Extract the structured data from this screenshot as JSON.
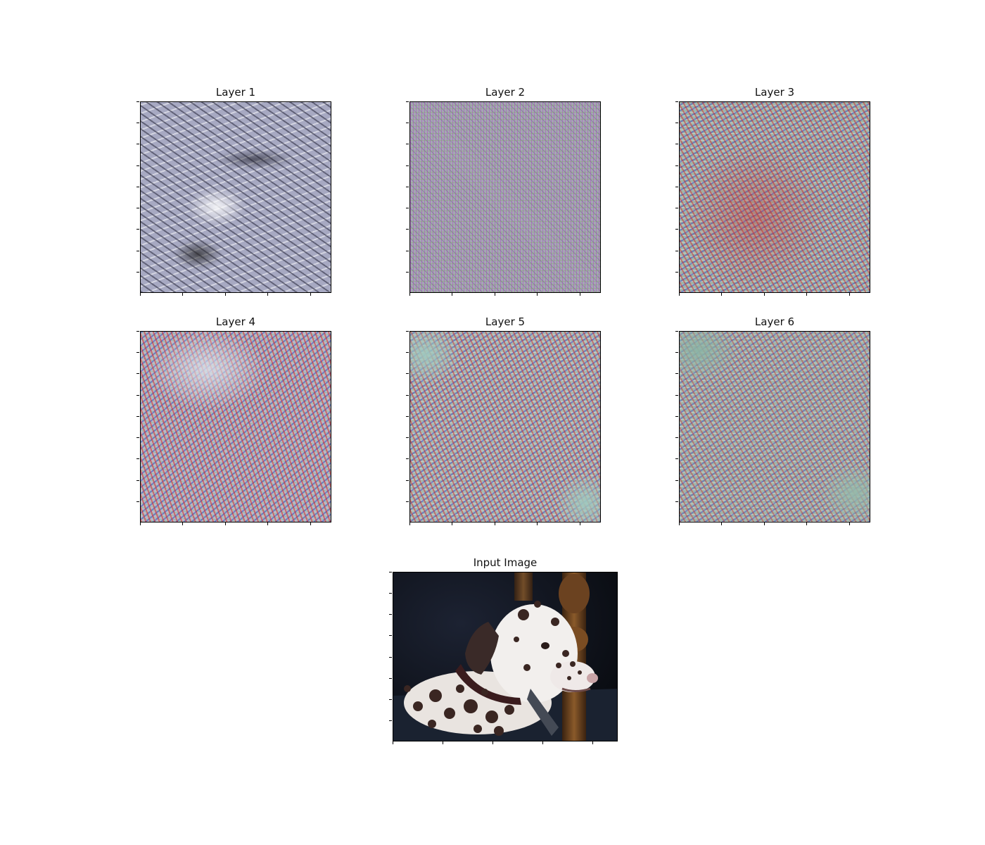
{
  "panels": [
    {
      "id": "layer-1",
      "title": "Layer 1"
    },
    {
      "id": "layer-2",
      "title": "Layer 2"
    },
    {
      "id": "layer-3",
      "title": "Layer 3"
    },
    {
      "id": "layer-4",
      "title": "Layer 4"
    },
    {
      "id": "layer-5",
      "title": "Layer 5"
    },
    {
      "id": "layer-6",
      "title": "Layer 6"
    }
  ],
  "input": {
    "title": "Input Image"
  }
}
